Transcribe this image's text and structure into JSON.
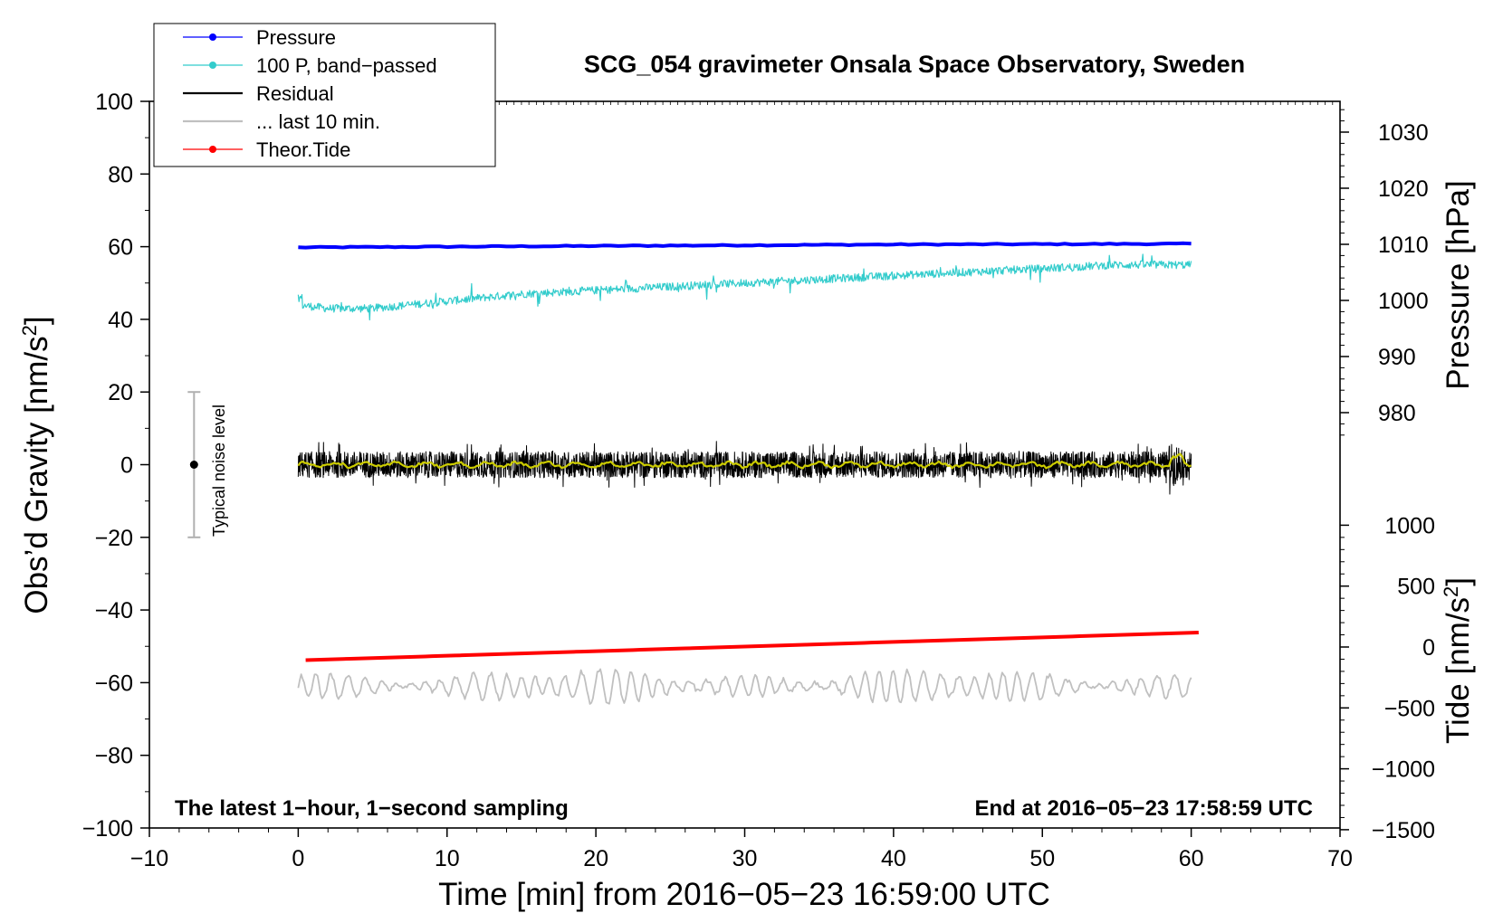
{
  "chart_data": {
    "type": "line",
    "title": "SCG_054 gravimeter Onsala Space Observatory, Sweden",
    "xlabel": "Time [min] from 2016−05−23 16:59:00 UTC",
    "ylabel": "Obs’d Gravity [nm/s",
    "ylabel_sup": "2",
    "ylabel_close": "]",
    "y2label": "Pressure [hPa]",
    "y3label": "Tide [nm/s",
    "y3label_sup": "2",
    "y3label_close": "]",
    "xlim": [
      -10,
      70
    ],
    "ylim": [
      -100,
      100
    ],
    "x_ticks": [
      -10,
      0,
      10,
      20,
      30,
      40,
      50,
      60,
      70
    ],
    "x_tick_labels": [
      "−10",
      "0",
      "10",
      "20",
      "30",
      "40",
      "50",
      "60",
      "70"
    ],
    "y_ticks": [
      100,
      80,
      60,
      40,
      20,
      0,
      -20,
      -40,
      -60,
      -80,
      -100
    ],
    "y_tick_labels": [
      "100",
      "80",
      "60",
      "40",
      "20",
      "0",
      "−20",
      "−40",
      "−60",
      "−80",
      "−100"
    ],
    "pressure_axis": {
      "ticks": [
        1030,
        1020,
        1010,
        1000,
        990,
        980
      ],
      "labels": [
        "1030",
        "1020",
        "1010",
        "1000",
        "990",
        "980"
      ]
    },
    "tide_axis": {
      "ticks": [
        1000,
        500,
        0,
        -500,
        -1000,
        -1500
      ],
      "labels": [
        "1000",
        "500",
        "0",
        "−500",
        "−1000",
        "−1500"
      ]
    },
    "legend": {
      "position": "top-left",
      "entries": [
        {
          "label": "Pressure",
          "color": "#0000ff",
          "marker": "dot"
        },
        {
          "label": "100 P, band−passed",
          "color": "#33cccc",
          "marker": "dot"
        },
        {
          "label": "Residual",
          "color": "#000000",
          "marker": "none"
        },
        {
          "label": "... last 10 min.",
          "color": "#c0c0c0",
          "marker": "none"
        },
        {
          "label": "Theor.Tide",
          "color": "#ff0000",
          "marker": "dot"
        }
      ]
    },
    "series": [
      {
        "name": "Pressure",
        "axis": "gravity-scale",
        "color": "#0000ff",
        "x": [
          0,
          10,
          20,
          30,
          40,
          50,
          60
        ],
        "values": [
          59.8,
          60.0,
          60.2,
          60.4,
          60.6,
          60.7,
          60.8
        ]
      },
      {
        "name": "100 P, band−passed",
        "axis": "gravity-scale",
        "color": "#33cccc",
        "x": [
          0,
          2,
          5,
          10,
          15,
          20,
          25,
          30,
          35,
          40,
          45,
          50,
          55,
          60
        ],
        "values": [
          44,
          43,
          43,
          45,
          47,
          48,
          49,
          50,
          51,
          52,
          53,
          54,
          55,
          55
        ]
      },
      {
        "name": "Residual",
        "axis": "gravity-scale",
        "color": "#000000",
        "x": [
          0,
          60
        ],
        "values": [
          0,
          0
        ],
        "noise_amplitude": 6
      },
      {
        "name": "Residual smoothed",
        "axis": "gravity-scale",
        "color": "#cccc00",
        "x": [
          0,
          60
        ],
        "values": [
          0,
          0
        ]
      },
      {
        "name": "... last 10 min.",
        "axis": "gravity-scale",
        "color": "#c0c0c0",
        "x": [
          0,
          60
        ],
        "values": [
          -61,
          -61
        ],
        "noise_amplitude": 5
      },
      {
        "name": "Theor.Tide",
        "axis": "gravity-scale",
        "color": "#ff0000",
        "x": [
          0.5,
          60.5
        ],
        "values": [
          -53.8,
          -46.2
        ]
      }
    ],
    "noise_indicator": {
      "label": "Typical noise level",
      "x": -7,
      "center": 0,
      "low": -20,
      "high": 20
    },
    "annotations": {
      "left": "The latest 1−hour, 1−second sampling",
      "right": "End at 2016−05−23 17:58:59 UTC"
    }
  }
}
